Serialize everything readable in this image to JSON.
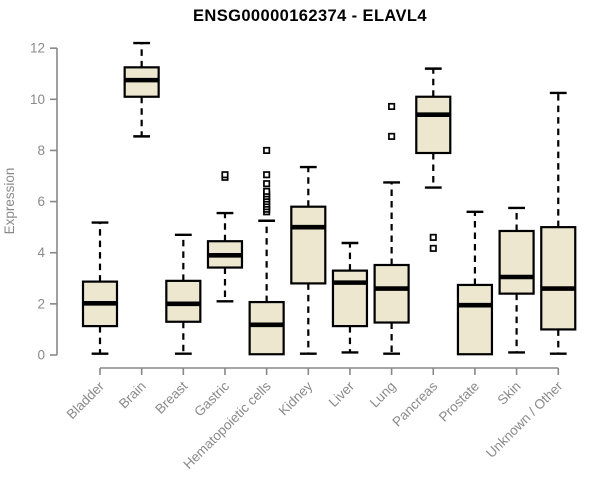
{
  "title": "ENSG00000162374 - ELAVL4",
  "chart_data": {
    "type": "boxplot",
    "title": "ENSG00000162374 - ELAVL4",
    "ylabel": "Expression",
    "xlabel": "",
    "ylim": [
      0,
      12
    ],
    "yticks": [
      0,
      2,
      4,
      6,
      8,
      10,
      12
    ],
    "grid": false,
    "legend": "none",
    "categories": [
      "Bladder",
      "Brain",
      "Breast",
      "Gastric",
      "Hematopoietic cells",
      "Kidney",
      "Liver",
      "Lung",
      "Pancreas",
      "Prostate",
      "Skin",
      "Unknown / Other"
    ],
    "boxes": [
      {
        "category": "Bladder",
        "whisker_low": 0.05,
        "q1": 1.13,
        "median": 2.02,
        "q3": 2.87,
        "whisker_high": 5.18,
        "outliers": []
      },
      {
        "category": "Brain",
        "whisker_low": 8.55,
        "q1": 10.1,
        "median": 10.75,
        "q3": 11.25,
        "whisker_high": 12.2,
        "outliers": []
      },
      {
        "category": "Breast",
        "whisker_low": 0.05,
        "q1": 1.3,
        "median": 2.0,
        "q3": 2.9,
        "whisker_high": 4.7,
        "outliers": []
      },
      {
        "category": "Gastric",
        "whisker_low": 2.1,
        "q1": 3.42,
        "median": 3.9,
        "q3": 4.45,
        "whisker_high": 5.55,
        "outliers": [
          6.95,
          7.05
        ]
      },
      {
        "category": "Hematopoietic cells",
        "whisker_low": 0.03,
        "q1": 0.03,
        "median": 1.18,
        "q3": 2.07,
        "whisker_high": 5.25,
        "outliers": [
          5.6,
          5.7,
          5.8,
          5.9,
          6.0,
          6.1,
          6.2,
          6.3,
          6.4,
          6.7,
          7.05,
          8.0
        ]
      },
      {
        "category": "Kidney",
        "whisker_low": 0.05,
        "q1": 2.8,
        "median": 5.0,
        "q3": 5.8,
        "whisker_high": 7.35,
        "outliers": []
      },
      {
        "category": "Liver",
        "whisker_low": 0.1,
        "q1": 1.13,
        "median": 2.83,
        "q3": 3.3,
        "whisker_high": 4.38,
        "outliers": []
      },
      {
        "category": "Lung",
        "whisker_low": 0.05,
        "q1": 1.27,
        "median": 2.6,
        "q3": 3.52,
        "whisker_high": 6.75,
        "outliers": [
          8.55,
          9.72
        ]
      },
      {
        "category": "Pancreas",
        "whisker_low": 6.55,
        "q1": 7.9,
        "median": 9.4,
        "q3": 10.1,
        "whisker_high": 11.2,
        "outliers": [
          4.17,
          4.6
        ]
      },
      {
        "category": "Prostate",
        "whisker_low": 0.03,
        "q1": 0.03,
        "median": 1.95,
        "q3": 2.74,
        "whisker_high": 5.6,
        "outliers": []
      },
      {
        "category": "Skin",
        "whisker_low": 0.1,
        "q1": 2.4,
        "median": 3.05,
        "q3": 4.85,
        "whisker_high": 5.75,
        "outliers": []
      },
      {
        "category": "Unknown / Other",
        "whisker_low": 0.05,
        "q1": 1.0,
        "median": 2.6,
        "q3": 5.0,
        "whisker_high": 10.25,
        "outliers": []
      }
    ],
    "colors": {
      "box_fill": "#ECE7CE",
      "box_stroke": "#000000",
      "median": "#000000",
      "whisker": "#000000",
      "outlier_stroke": "#000000",
      "outlier_fill": "#ffffff",
      "axis": "#888888",
      "tick_labels": "#8a8a8a",
      "title": "#000000",
      "background": "#ffffff"
    }
  }
}
